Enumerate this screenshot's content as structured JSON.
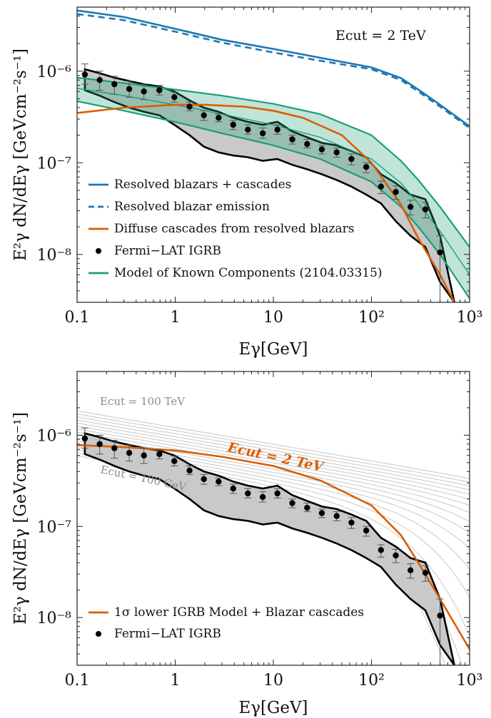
{
  "chart_data": [
    {
      "type": "line",
      "x_scale": "log",
      "y_scale": "log",
      "xlim": [
        0.1,
        1000
      ],
      "ylim": [
        3e-09,
        5e-06
      ],
      "xlabel": "Eγ[GeV]",
      "ylabel": "E²γ dN/dEγ [GeVcm⁻²s⁻¹]",
      "x_tick_labels": [
        "0.1",
        "1",
        "10",
        "10²",
        "10³"
      ],
      "y_tick_labels": [
        "10⁻⁸",
        "10⁻⁷",
        "10⁻⁶"
      ],
      "annotation": "Ecut = 2 TeV",
      "legend_position": "bottom-left",
      "colors": {
        "blue": "#1f77b4",
        "orange": "#d95f02",
        "green": "#1b9e77",
        "band": "#c8c8c8"
      },
      "series": [
        {
          "name": "Resolved blazars + cascades",
          "style": "solid",
          "color": "#1f77b4",
          "x": [
            0.1,
            0.3,
            1,
            3,
            10,
            30,
            100,
            200,
            300,
            500,
            1000
          ],
          "y": [
            4.6e-06,
            3.9e-06,
            2.9e-06,
            2.2e-06,
            1.75e-06,
            1.4e-06,
            1.1e-06,
            8.4e-07,
            6.3e-07,
            4.3e-07,
            2.5e-07
          ]
        },
        {
          "name": "Resolved blazar emission",
          "style": "dashed",
          "color": "#1f77b4",
          "x": [
            0.1,
            0.3,
            1,
            3,
            10,
            30,
            100,
            200,
            300,
            500,
            1000
          ],
          "y": [
            4.2e-06,
            3.6e-06,
            2.7e-06,
            2.05e-06,
            1.6e-06,
            1.3e-06,
            1.05e-06,
            8e-07,
            6e-07,
            4.1e-07,
            2.4e-07
          ]
        },
        {
          "name": "Diffuse cascades from resolved blazars",
          "style": "solid",
          "color": "#d95f02",
          "x": [
            0.1,
            0.3,
            1,
            2,
            5,
            10,
            20,
            50,
            100,
            200,
            300,
            500,
            700
          ],
          "y": [
            3.5e-07,
            4e-07,
            4.3e-07,
            4.3e-07,
            4.1e-07,
            3.7e-07,
            3.1e-07,
            2e-07,
            1e-07,
            3.5e-08,
            1.5e-08,
            6e-09,
            3e-09
          ]
        },
        {
          "name": "Fermi−LAT IGRB",
          "style": "points",
          "color": "#000000",
          "x": [
            0.12,
            0.17,
            0.24,
            0.34,
            0.48,
            0.69,
            0.98,
            1.4,
            1.96,
            2.77,
            3.9,
            5.5,
            7.8,
            11.0,
            15.6,
            22.1,
            31.2,
            44.2,
            62.5,
            88.4,
            125,
            177,
            250,
            354,
            500
          ],
          "y": [
            9.2e-07,
            8e-07,
            7.2e-07,
            6.4e-07,
            6e-07,
            6.2e-07,
            5.2e-07,
            4.1e-07,
            3.3e-07,
            3.1e-07,
            2.6e-07,
            2.3e-07,
            2.1e-07,
            2.3e-07,
            1.8e-07,
            1.6e-07,
            1.4e-07,
            1.3e-07,
            1.1e-07,
            9e-08,
            5.5e-08,
            4.8e-08,
            3.3e-08,
            3.1e-08,
            1.05e-08
          ],
          "yerr_up": [
            1.2e-06,
            1e-06,
            8.8e-07,
            7.8e-07,
            7.2e-07,
            7e-07,
            5.9e-07,
            4.6e-07,
            3.7e-07,
            3.4e-07,
            2.9e-07,
            2.6e-07,
            2.4e-07,
            2.6e-07,
            2e-07,
            1.8e-07,
            1.55e-07,
            1.45e-07,
            1.25e-07,
            1e-07,
            6.3e-08,
            5.6e-08,
            3.9e-08,
            3.7e-08,
            1.6e-08
          ],
          "yerr_down": [
            7.2e-07,
            6.2e-07,
            5.6e-07,
            5.2e-07,
            4.9e-07,
            5.5e-07,
            4.6e-07,
            3.7e-07,
            2.9e-07,
            2.8e-07,
            2.3e-07,
            2.05e-07,
            1.85e-07,
            2.05e-07,
            1.6e-07,
            1.45e-07,
            1.25e-07,
            1.15e-07,
            9.5e-08,
            7.8e-08,
            4.6e-08,
            4e-08,
            2.7e-08,
            2.5e-08,
            3e-09
          ]
        },
        {
          "name": "Model of Known Components (2104.03315)",
          "style": "solid-band",
          "color": "#1b9e77",
          "x": [
            0.1,
            0.3,
            1,
            3,
            10,
            30,
            100,
            200,
            300,
            500,
            1000
          ],
          "y_upper": [
            8.5e-07,
            7.4e-07,
            6.3e-07,
            5.4e-07,
            4.4e-07,
            3.4e-07,
            2e-07,
            1.05e-07,
            6.5e-08,
            3.3e-08,
            1.2e-08
          ],
          "y_mid": [
            6.5e-07,
            5.4e-07,
            4.3e-07,
            3.4e-07,
            2.6e-07,
            1.9e-07,
            1.1e-07,
            6e-08,
            3.6e-08,
            1.8e-08,
            6e-09
          ],
          "y_lower": [
            4.7e-07,
            3.7e-07,
            2.8e-07,
            2.1e-07,
            1.55e-07,
            1.1e-07,
            6.2e-08,
            3.3e-08,
            2e-08,
            1e-08,
            3.3e-09
          ]
        }
      ],
      "igrb_band": {
        "x": [
          0.12,
          0.17,
          0.24,
          0.34,
          0.48,
          0.69,
          0.98,
          1.4,
          1.96,
          2.77,
          3.9,
          5.5,
          7.8,
          11.0,
          15.6,
          22.1,
          31.2,
          44.2,
          62.5,
          88.4,
          125,
          177,
          250,
          354,
          500,
          700
        ],
        "upper": [
          1.05e-06,
          9.5e-07,
          8.5e-07,
          7.8e-07,
          7.2e-07,
          6.8e-07,
          6e-07,
          4.8e-07,
          4e-07,
          3.6e-07,
          3.1e-07,
          2.8e-07,
          2.6e-07,
          2.8e-07,
          2.2e-07,
          1.9e-07,
          1.65e-07,
          1.55e-07,
          1.35e-07,
          1.15e-07,
          7.5e-08,
          6e-08,
          4.5e-08,
          4e-08,
          1.6e-08,
          3e-09
        ],
        "lower": [
          6.2e-07,
          5.4e-07,
          4.6e-07,
          4e-07,
          3.6e-07,
          3.3e-07,
          2.6e-07,
          2e-07,
          1.5e-07,
          1.3e-07,
          1.2e-07,
          1.15e-07,
          1.05e-07,
          1.1e-07,
          9.5e-08,
          8.5e-08,
          7.5e-08,
          6.5e-08,
          5.5e-08,
          4.5e-08,
          3.6e-08,
          2.3e-08,
          1.6e-08,
          1.2e-08,
          5e-09,
          3e-09
        ]
      }
    },
    {
      "type": "line",
      "x_scale": "log",
      "y_scale": "log",
      "xlim": [
        0.1,
        1000
      ],
      "ylim": [
        3e-09,
        5e-06
      ],
      "xlabel": "Eγ[GeV]",
      "ylabel": "E²γ dN/dEγ [GeVcm⁻²s⁻¹]",
      "x_tick_labels": [
        "0.1",
        "1",
        "10",
        "10²",
        "10³"
      ],
      "y_tick_labels": [
        "10⁻⁸",
        "10⁻⁷",
        "10⁻⁶"
      ],
      "annotations": {
        "top": "Ecut = 100 TeV",
        "highlight": "Ecut = 2 TeV",
        "bottom": "Ecut = 100 GeV"
      },
      "legend_position": "bottom-left",
      "family": {
        "count": 16,
        "ecut_min_GeV": 100,
        "ecut_max_GeV": 100000,
        "amp_at_0p1_lowest": 5.5e-07,
        "amp_at_0p1_highest": 1.8e-06,
        "color": "#c8c8c8"
      },
      "series": [
        {
          "name": "1σ lower IGRB Model + Blazar cascades",
          "style": "solid",
          "color": "#d95f02",
          "x": [
            0.1,
            0.3,
            1,
            3,
            10,
            30,
            100,
            200,
            300,
            500,
            1000
          ],
          "y": [
            7.8e-07,
            7.4e-07,
            6.8e-07,
            5.8e-07,
            4.6e-07,
            3.2e-07,
            1.7e-07,
            8e-08,
            4e-08,
            1.6e-08,
            4.5e-09
          ]
        },
        {
          "name": "Fermi−LAT IGRB",
          "style": "points",
          "color": "#000000",
          "x": [
            0.12,
            0.17,
            0.24,
            0.34,
            0.48,
            0.69,
            0.98,
            1.4,
            1.96,
            2.77,
            3.9,
            5.5,
            7.8,
            11.0,
            15.6,
            22.1,
            31.2,
            44.2,
            62.5,
            88.4,
            125,
            177,
            250,
            354,
            500
          ],
          "y": [
            9.2e-07,
            8e-07,
            7.2e-07,
            6.4e-07,
            6e-07,
            6.2e-07,
            5.2e-07,
            4.1e-07,
            3.3e-07,
            3.1e-07,
            2.6e-07,
            2.3e-07,
            2.1e-07,
            2.3e-07,
            1.8e-07,
            1.6e-07,
            1.4e-07,
            1.3e-07,
            1.1e-07,
            9e-08,
            5.5e-08,
            4.8e-08,
            3.3e-08,
            3.1e-08,
            1.05e-08
          ],
          "yerr_up": [
            1.2e-06,
            1e-06,
            8.8e-07,
            7.8e-07,
            7.2e-07,
            7e-07,
            5.9e-07,
            4.6e-07,
            3.7e-07,
            3.4e-07,
            2.9e-07,
            2.6e-07,
            2.4e-07,
            2.6e-07,
            2e-07,
            1.8e-07,
            1.55e-07,
            1.45e-07,
            1.25e-07,
            1e-07,
            6.3e-08,
            5.6e-08,
            3.9e-08,
            3.7e-08,
            1.6e-08
          ],
          "yerr_down": [
            7.2e-07,
            6.2e-07,
            5.6e-07,
            5.2e-07,
            4.9e-07,
            5.5e-07,
            4.6e-07,
            3.7e-07,
            2.9e-07,
            2.8e-07,
            2.3e-07,
            2.05e-07,
            1.85e-07,
            2.05e-07,
            1.6e-07,
            1.45e-07,
            1.25e-07,
            1.15e-07,
            9.5e-08,
            7.8e-08,
            4.6e-08,
            4e-08,
            2.7e-08,
            2.5e-08,
            3e-09
          ]
        }
      ],
      "igrb_band": {
        "x": [
          0.12,
          0.17,
          0.24,
          0.34,
          0.48,
          0.69,
          0.98,
          1.4,
          1.96,
          2.77,
          3.9,
          5.5,
          7.8,
          11.0,
          15.6,
          22.1,
          31.2,
          44.2,
          62.5,
          88.4,
          125,
          177,
          250,
          354,
          500,
          700
        ],
        "upper": [
          1.05e-06,
          9.5e-07,
          8.5e-07,
          7.8e-07,
          7.2e-07,
          6.8e-07,
          6e-07,
          4.8e-07,
          4e-07,
          3.6e-07,
          3.1e-07,
          2.8e-07,
          2.6e-07,
          2.8e-07,
          2.2e-07,
          1.9e-07,
          1.65e-07,
          1.55e-07,
          1.35e-07,
          1.15e-07,
          7.5e-08,
          6e-08,
          4.5e-08,
          4e-08,
          1.6e-08,
          3e-09
        ],
        "lower": [
          6.2e-07,
          5.4e-07,
          4.6e-07,
          4e-07,
          3.6e-07,
          3.3e-07,
          2.6e-07,
          2e-07,
          1.5e-07,
          1.3e-07,
          1.2e-07,
          1.15e-07,
          1.05e-07,
          1.1e-07,
          9.5e-08,
          8.5e-08,
          7.5e-08,
          6.5e-08,
          5.5e-08,
          4.5e-08,
          3.6e-08,
          2.3e-08,
          1.6e-08,
          1.2e-08,
          5e-09,
          3e-09
        ]
      }
    }
  ]
}
